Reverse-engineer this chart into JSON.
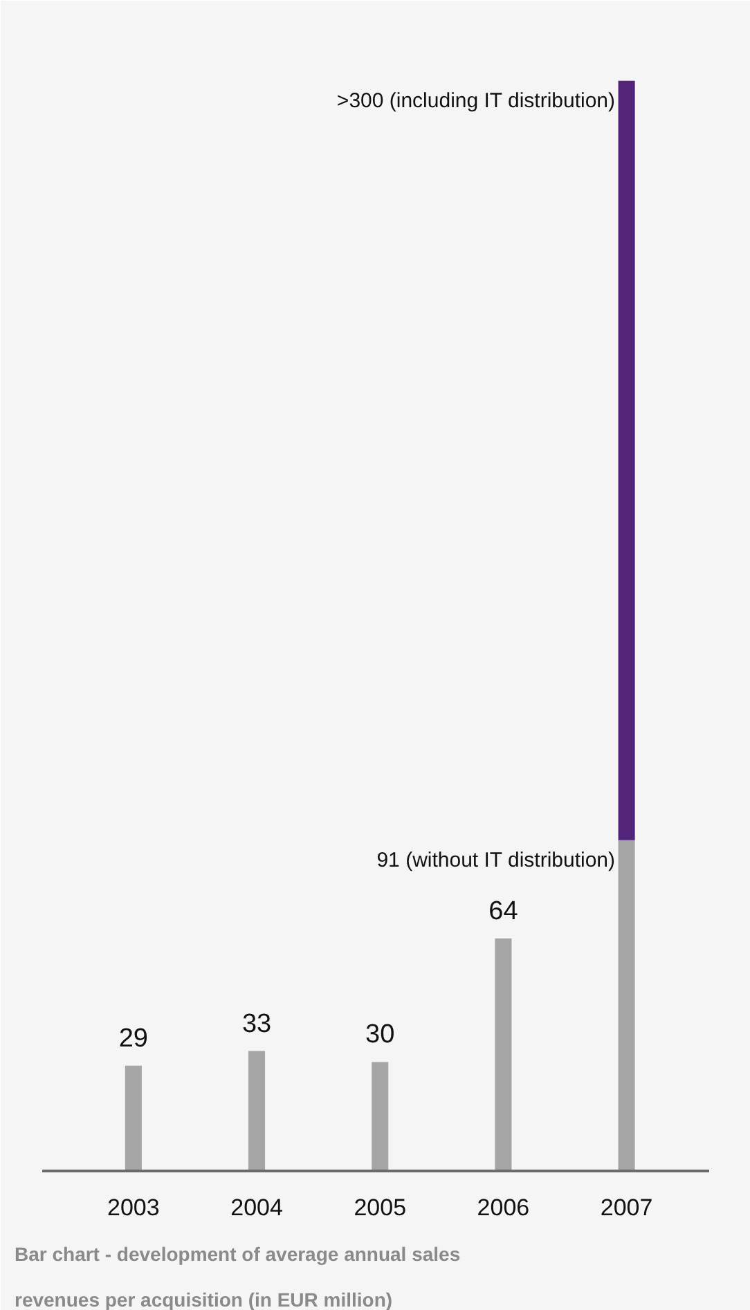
{
  "chart_data": {
    "type": "bar",
    "stacked": true,
    "categories": [
      "2003",
      "2004",
      "2005",
      "2006",
      "2007"
    ],
    "series": [
      {
        "color": "#a5a5a5",
        "values": [
          29,
          33,
          30,
          64,
          91
        ],
        "value_labels": [
          "29",
          "33",
          "30",
          "64",
          null
        ]
      },
      {
        "color": "#52247a",
        "values": [
          null,
          null,
          null,
          null,
          209
        ]
      }
    ],
    "totals": [
      null,
      null,
      null,
      null,
      ">300 (including IT distribution)"
    ],
    "grid": false,
    "tick_labels": "x",
    "annotations": [
      {
        "text": "91 (without IT distribution)",
        "x": "2007",
        "y": 91
      },
      "Bar chart - development of average annual sales revenues per acquisition (in EUR million)"
    ]
  }
}
